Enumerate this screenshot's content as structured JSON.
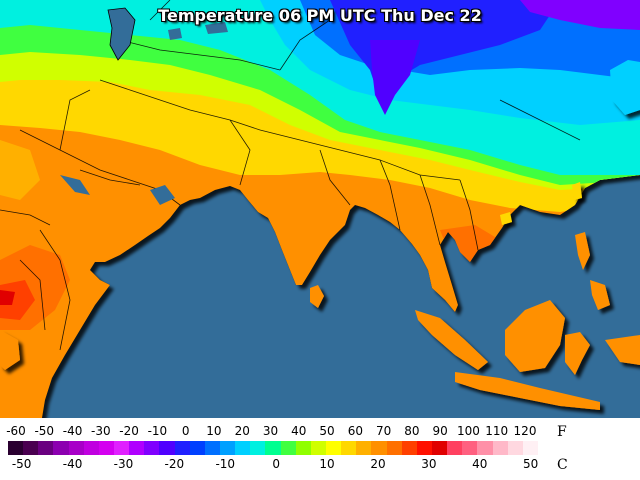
{
  "title": "Temperature 06 PM UTC Thu Dec 22",
  "legend": {
    "f_unit": "F",
    "c_unit": "C",
    "f_ticks": [
      "-60",
      "-50",
      "-40",
      "-30",
      "-20",
      "-10",
      "0",
      "10",
      "20",
      "30",
      "40",
      "50",
      "60",
      "70",
      "80",
      "90",
      "100",
      "110",
      "120"
    ],
    "c_ticks": [
      "-50",
      "-40",
      "-30",
      "-20",
      "-10",
      "0",
      "10",
      "20",
      "30",
      "40",
      "50"
    ],
    "colors": [
      "#2a0030",
      "#4a0050",
      "#6a0080",
      "#8c00b0",
      "#a800c8",
      "#c000e0",
      "#d400f0",
      "#e020ff",
      "#b000ff",
      "#8000ff",
      "#5000ff",
      "#2020ff",
      "#0040ff",
      "#0070ff",
      "#00a0ff",
      "#00d0ff",
      "#00f0e0",
      "#00ff90",
      "#40ff40",
      "#90ff00",
      "#d0ff00",
      "#ffff00",
      "#ffd800",
      "#ffb000",
      "#ff9000",
      "#ff7000",
      "#ff4000",
      "#ff1000",
      "#e00000",
      "#ff4060",
      "#ff6080",
      "#ff90a8",
      "#ffb8c8",
      "#ffd8e0",
      "#fff0f4",
      "#ffffff"
    ]
  },
  "map": {
    "ocean_color": "#336d99",
    "region": "Middle East, Africa, South and Southeast Asia"
  }
}
